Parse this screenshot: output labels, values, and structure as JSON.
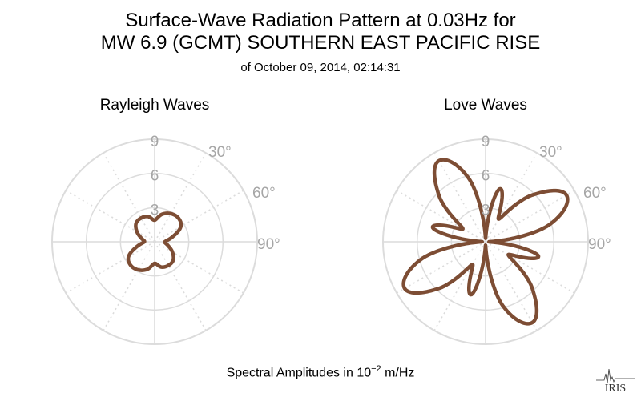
{
  "header": {
    "title_line1": "Surface-Wave Radiation Pattern at 0.03Hz for",
    "title_line2": "MW 6.9 (GCMT) SOUTHERN EAST PACIFIC RISE",
    "subtitle": "of October 09, 2014, 02:14:31"
  },
  "footer": {
    "prefix": "Spectral Amplitudes in ",
    "base": "10",
    "exponent": "−2",
    "suffix": " m/Hz"
  },
  "logo": {
    "text": "IRIS"
  },
  "colors": {
    "pattern": "#7d4d34",
    "grid": "#dcdcdc",
    "label": "#a6a6a6"
  },
  "chart_data": [
    {
      "type": "polar",
      "title": "Rayleigh Waves",
      "radial_ticks": [
        "3",
        "6",
        "9"
      ],
      "radial_max": 9,
      "angle_labels": [
        "30°",
        "60°",
        "90°"
      ],
      "series": [
        {
          "azimuth_deg": [
            0,
            15,
            30,
            45,
            60,
            75,
            90,
            105,
            120,
            135,
            150,
            165,
            180,
            195,
            210,
            225,
            240,
            255,
            270,
            285,
            300,
            315,
            330,
            345
          ],
          "amplitude": [
            1.9,
            2.5,
            2.85,
            2.95,
            2.65,
            1.6,
            0.9,
            1.2,
            1.8,
            2.3,
            2.4,
            2.3,
            1.9,
            2.5,
            2.85,
            2.95,
            2.65,
            1.6,
            0.9,
            1.2,
            1.8,
            2.3,
            2.4,
            2.3
          ]
        }
      ]
    },
    {
      "type": "polar",
      "title": "Love Waves",
      "radial_ticks": [
        "3",
        "6",
        "9"
      ],
      "radial_max": 9,
      "angle_labels": [
        "30°",
        "60°",
        "90°"
      ],
      "series": [
        {
          "azimuth_deg": [
            0,
            15,
            30,
            45,
            60,
            75,
            90,
            105,
            120,
            135,
            150,
            165,
            180,
            195,
            210,
            225,
            240,
            255,
            270,
            285,
            300,
            315,
            330,
            345
          ],
          "amplitude": [
            0.3,
            4.8,
            2.3,
            5.8,
            8.2,
            5.8,
            0.3,
            4.8,
            2.3,
            5.8,
            8.2,
            5.8,
            0.3,
            4.8,
            2.3,
            5.8,
            8.2,
            5.8,
            0.3,
            4.8,
            2.3,
            5.8,
            8.2,
            5.8
          ]
        }
      ]
    }
  ]
}
